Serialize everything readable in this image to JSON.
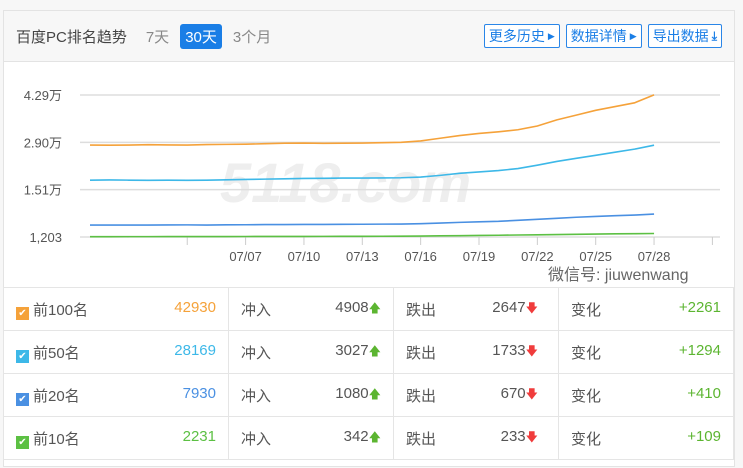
{
  "header": {
    "title": "百度PC排名趋势",
    "ranges": [
      "7天",
      "30天",
      "3个月"
    ],
    "active_range": "30天",
    "buttons": [
      {
        "label": "更多历史",
        "icon": "caret-right-icon"
      },
      {
        "label": "数据详情",
        "icon": "caret-right-icon"
      },
      {
        "label": "导出数据",
        "icon": "download-icon"
      }
    ]
  },
  "watermark_logo": "5118.com",
  "chart_data": {
    "type": "line",
    "y_ticks": [
      "4.29万",
      "2.90万",
      "1.51万",
      "1,203"
    ],
    "y_tick_values": [
      42900,
      29000,
      15100,
      1203
    ],
    "ylim": [
      1203,
      42900
    ],
    "x_ticks": [
      "07/07",
      "07/10",
      "07/13",
      "07/16",
      "07/19",
      "07/22",
      "07/25",
      "07/28"
    ],
    "x_range": [
      "06/29",
      "07/28"
    ],
    "grid": true,
    "series": [
      {
        "color": "#f5a23a",
        "values": [
          28200,
          28150,
          28200,
          28300,
          28250,
          28200,
          28350,
          28400,
          28450,
          28600,
          28750,
          28800,
          28700,
          28750,
          28800,
          28900,
          29000,
          29400,
          30200,
          31000,
          31600,
          32100,
          32700,
          33800,
          35600,
          37000,
          38400,
          39500,
          40600,
          42930
        ]
      },
      {
        "color": "#3db8e8",
        "values": [
          17900,
          17950,
          17900,
          17850,
          17900,
          17850,
          17900,
          18000,
          18100,
          18200,
          18300,
          18400,
          18450,
          18500,
          18500,
          18550,
          18600,
          18800,
          19300,
          19900,
          20300,
          20700,
          21300,
          22300,
          23400,
          24300,
          25200,
          26100,
          27000,
          28169
        ]
      },
      {
        "color": "#4a90e2",
        "values": [
          4700,
          4700,
          4720,
          4700,
          4750,
          4760,
          4720,
          4780,
          4800,
          4850,
          4860,
          4880,
          4900,
          4920,
          4950,
          4980,
          5000,
          5100,
          5300,
          5500,
          5650,
          5800,
          6100,
          6400,
          6700,
          7000,
          7250,
          7450,
          7650,
          7930
        ]
      },
      {
        "color": "#5cc043",
        "values": [
          1300,
          1300,
          1310,
          1310,
          1320,
          1320,
          1330,
          1340,
          1350,
          1360,
          1370,
          1380,
          1390,
          1400,
          1410,
          1420,
          1440,
          1480,
          1540,
          1600,
          1660,
          1720,
          1790,
          1860,
          1930,
          2000,
          2070,
          2130,
          2180,
          2231
        ]
      }
    ]
  },
  "table": {
    "in_label": "冲入",
    "out_label": "跌出",
    "change_label": "变化",
    "rows": [
      {
        "label": "前100名",
        "total": "42930",
        "color": "#f5a23a",
        "in": "4908",
        "out": "2647",
        "change": "+2261"
      },
      {
        "label": "前50名",
        "total": "28169",
        "color": "#3db8e8",
        "in": "3027",
        "out": "1733",
        "change": "+1294"
      },
      {
        "label": "前20名",
        "total": "7930",
        "color": "#4a90e2",
        "in": "1080",
        "out": "670",
        "change": "+410"
      },
      {
        "label": "前10名",
        "total": "2231",
        "color": "#5cc043",
        "in": "342",
        "out": "233",
        "change": "+109"
      }
    ]
  },
  "watermark": "微信号: jiuwenwang"
}
